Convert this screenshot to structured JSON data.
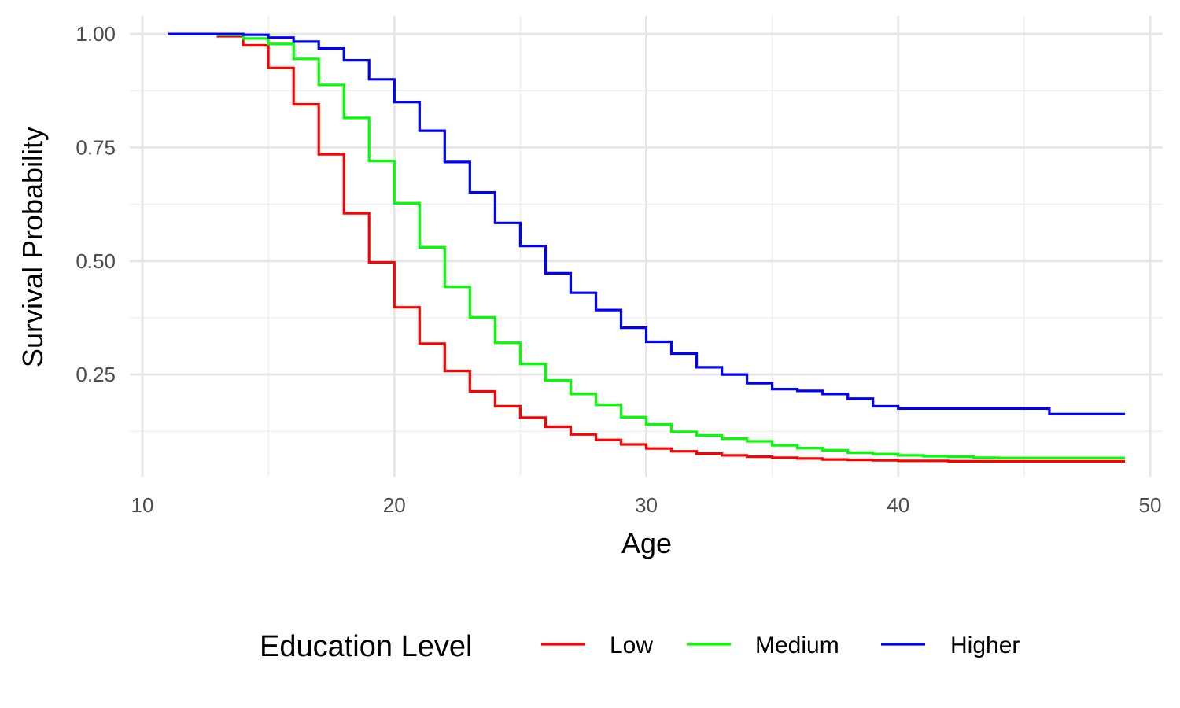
{
  "chart_data": {
    "type": "line",
    "step": true,
    "xlabel": "Age",
    "ylabel": "Survival Probability",
    "xlim": [
      9.5,
      50.5
    ],
    "ylim": [
      0.025,
      1.04
    ],
    "x_ticks": [
      10,
      20,
      30,
      40,
      50
    ],
    "x_tick_labels": [
      "10",
      "20",
      "30",
      "40",
      "50"
    ],
    "x_minor_ticks": [
      15,
      25,
      35,
      45
    ],
    "y_ticks": [
      0.25,
      0.5,
      0.75,
      1.0
    ],
    "y_tick_labels": [
      "0.25",
      "0.50",
      "0.75",
      "1.00"
    ],
    "y_minor_ticks": [
      0.125,
      0.375,
      0.625,
      0.875
    ],
    "grid": true,
    "legend": {
      "title": "Education Level",
      "position": "bottom"
    },
    "series": [
      {
        "name": "Low",
        "color": "#ff0000",
        "x": [
          11,
          12,
          13,
          14,
          15,
          16,
          17,
          18,
          19,
          20,
          21,
          22,
          23,
          24,
          25,
          26,
          27,
          28,
          29,
          30,
          31,
          32,
          33,
          34,
          35,
          36,
          37,
          38,
          39,
          40,
          41,
          42,
          43,
          44,
          45,
          46,
          47,
          48,
          49
        ],
        "y": [
          1.0,
          1.0,
          0.995,
          0.975,
          0.925,
          0.845,
          0.735,
          0.605,
          0.497,
          0.398,
          0.318,
          0.258,
          0.213,
          0.18,
          0.155,
          0.135,
          0.118,
          0.106,
          0.096,
          0.087,
          0.081,
          0.076,
          0.072,
          0.069,
          0.067,
          0.065,
          0.063,
          0.062,
          0.061,
          0.06,
          0.06,
          0.059,
          0.059,
          0.059,
          0.059,
          0.059,
          0.059,
          0.059,
          0.059
        ]
      },
      {
        "name": "Medium",
        "color": "#00ff00",
        "x": [
          11,
          12,
          13,
          14,
          15,
          16,
          17,
          18,
          19,
          20,
          21,
          22,
          23,
          24,
          25,
          26,
          27,
          28,
          29,
          30,
          31,
          32,
          33,
          34,
          35,
          36,
          37,
          38,
          39,
          40,
          41,
          42,
          43,
          44,
          45,
          46,
          47,
          48,
          49
        ],
        "y": [
          1.0,
          1.0,
          0.998,
          0.99,
          0.978,
          0.945,
          0.888,
          0.815,
          0.72,
          0.627,
          0.53,
          0.443,
          0.376,
          0.32,
          0.273,
          0.237,
          0.207,
          0.183,
          0.156,
          0.14,
          0.124,
          0.116,
          0.109,
          0.103,
          0.094,
          0.088,
          0.083,
          0.078,
          0.075,
          0.072,
          0.07,
          0.069,
          0.067,
          0.066,
          0.066,
          0.066,
          0.066,
          0.066,
          0.066
        ]
      },
      {
        "name": "Higher",
        "color": "#0000ff",
        "x": [
          11,
          12,
          13,
          14,
          15,
          16,
          17,
          18,
          19,
          20,
          21,
          22,
          23,
          24,
          25,
          26,
          27,
          28,
          29,
          30,
          31,
          32,
          33,
          34,
          35,
          36,
          37,
          38,
          39,
          40,
          41,
          42,
          43,
          44,
          45,
          46,
          47,
          48,
          49
        ],
        "y": [
          1.0,
          1.0,
          1.0,
          0.998,
          0.992,
          0.983,
          0.968,
          0.942,
          0.9,
          0.85,
          0.787,
          0.718,
          0.651,
          0.584,
          0.533,
          0.473,
          0.43,
          0.392,
          0.353,
          0.322,
          0.296,
          0.266,
          0.25,
          0.231,
          0.218,
          0.214,
          0.207,
          0.197,
          0.18,
          0.175,
          0.175,
          0.175,
          0.175,
          0.175,
          0.175,
          0.163,
          0.163,
          0.163,
          0.163
        ]
      }
    ]
  }
}
